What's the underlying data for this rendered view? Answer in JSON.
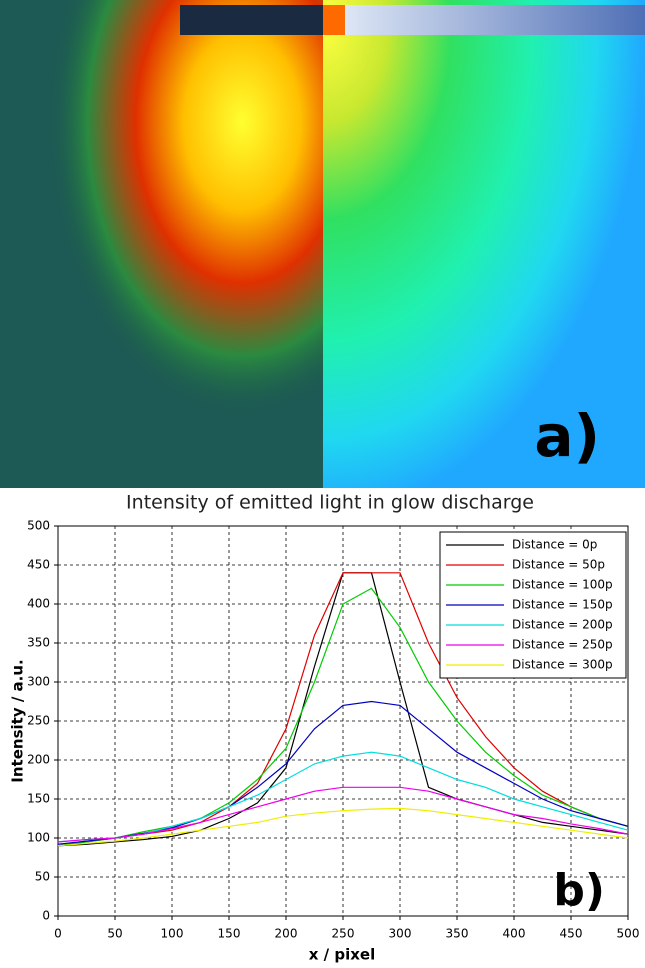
{
  "image_panel": {
    "label": "a)"
  },
  "chart_data": {
    "type": "line",
    "title": "Intensity of emitted light in glow discharge",
    "x_label": "x / pixel",
    "y_label": "Intensity / a.u.",
    "annotation": "b)",
    "x": [
      0,
      25,
      50,
      75,
      100,
      125,
      150,
      175,
      200,
      225,
      250,
      275,
      300,
      325,
      350,
      375,
      400,
      425,
      450,
      475,
      500
    ],
    "series": [
      {
        "name": "Distance = 0p",
        "color": "#000000",
        "values": [
          90,
          92,
          95,
          98,
          102,
          110,
          125,
          145,
          190,
          320,
          440,
          440,
          300,
          165,
          150,
          140,
          130,
          120,
          115,
          110,
          105
        ]
      },
      {
        "name": "Distance = 50p",
        "color": "#e00000",
        "values": [
          90,
          95,
          100,
          105,
          110,
          120,
          140,
          170,
          240,
          360,
          440,
          440,
          440,
          350,
          280,
          230,
          190,
          160,
          140,
          125,
          115
        ]
      },
      {
        "name": "Distance = 100p",
        "color": "#00cc00",
        "values": [
          90,
          95,
          100,
          108,
          115,
          125,
          145,
          175,
          215,
          300,
          400,
          420,
          370,
          300,
          250,
          210,
          180,
          155,
          140,
          125,
          115
        ]
      },
      {
        "name": "Distance = 150p",
        "color": "#0000c0",
        "values": [
          92,
          96,
          100,
          106,
          113,
          125,
          140,
          165,
          195,
          240,
          270,
          275,
          270,
          240,
          210,
          190,
          170,
          150,
          135,
          125,
          115
        ]
      },
      {
        "name": "Distance = 200p",
        "color": "#00dddd",
        "values": [
          95,
          98,
          100,
          105,
          115,
          125,
          140,
          155,
          175,
          195,
          205,
          210,
          205,
          190,
          175,
          165,
          150,
          140,
          130,
          120,
          110
        ]
      },
      {
        "name": "Distance = 250p",
        "color": "#ee00ee",
        "values": [
          95,
          98,
          100,
          105,
          112,
          120,
          130,
          140,
          150,
          160,
          165,
          165,
          165,
          160,
          150,
          140,
          130,
          125,
          118,
          112,
          105
        ]
      },
      {
        "name": "Distance = 300p",
        "color": "#eeee00",
        "values": [
          90,
          93,
          96,
          100,
          105,
          110,
          115,
          120,
          128,
          132,
          135,
          137,
          138,
          135,
          130,
          125,
          120,
          115,
          110,
          105,
          100
        ]
      }
    ],
    "xlim": [
      0,
      500
    ],
    "ylim": [
      0,
      500
    ],
    "xticks": [
      0,
      50,
      100,
      150,
      200,
      250,
      300,
      350,
      400,
      450,
      500
    ],
    "yticks": [
      0,
      50,
      100,
      150,
      200,
      250,
      300,
      350,
      400,
      450,
      500
    ],
    "grid": true,
    "legend": "upper right"
  }
}
